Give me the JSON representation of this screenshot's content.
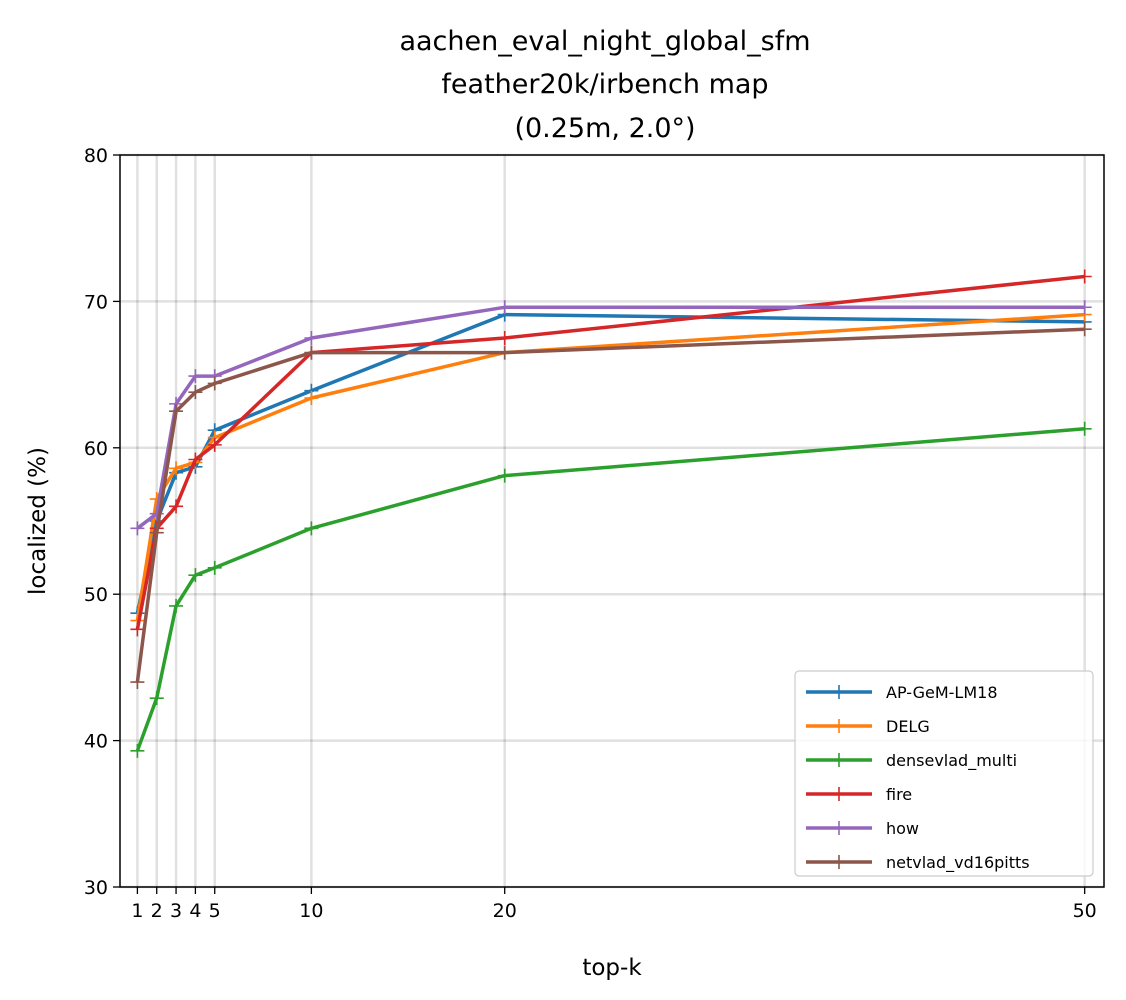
{
  "chart_data": {
    "type": "line",
    "title": [
      "aachen_eval_night_global_sfm",
      "feather20k/irbench map",
      "(0.25m, 2.0°)"
    ],
    "xlabel": "top-k",
    "ylabel": "localized (%)",
    "x": [
      1,
      2,
      3,
      4,
      5,
      10,
      20,
      50
    ],
    "xticks": [
      1,
      2,
      3,
      4,
      5,
      10,
      20,
      50
    ],
    "yticks": [
      30,
      40,
      50,
      60,
      70,
      80
    ],
    "xlim": [
      0.1,
      51.0
    ],
    "ylim": [
      30,
      80
    ],
    "grid": true,
    "legend_position": "lower right",
    "marker": "+",
    "series": [
      {
        "name": "AP-GeM-LM18",
        "color": "#1f77b4",
        "values": [
          48.7,
          55.0,
          58.3,
          58.7,
          61.2,
          63.9,
          69.1,
          68.6
        ]
      },
      {
        "name": "DELG",
        "color": "#ff7f0e",
        "values": [
          48.2,
          56.5,
          58.6,
          59.0,
          60.7,
          63.4,
          66.5,
          69.1
        ]
      },
      {
        "name": "densevlad_multi",
        "color": "#2ca02c",
        "values": [
          39.3,
          42.9,
          49.2,
          51.3,
          51.8,
          54.5,
          58.1,
          61.3
        ]
      },
      {
        "name": "fire",
        "color": "#d62728",
        "values": [
          47.6,
          54.5,
          56.0,
          59.2,
          60.2,
          66.5,
          67.5,
          71.7
        ]
      },
      {
        "name": "how",
        "color": "#9467bd",
        "values": [
          54.5,
          55.5,
          63.0,
          64.9,
          64.9,
          67.5,
          69.6,
          69.6
        ]
      },
      {
        "name": "netvlad_vd16pitts",
        "color": "#8c564b",
        "values": [
          44.0,
          54.2,
          62.5,
          63.8,
          64.4,
          66.5,
          66.5,
          68.1
        ]
      }
    ]
  }
}
